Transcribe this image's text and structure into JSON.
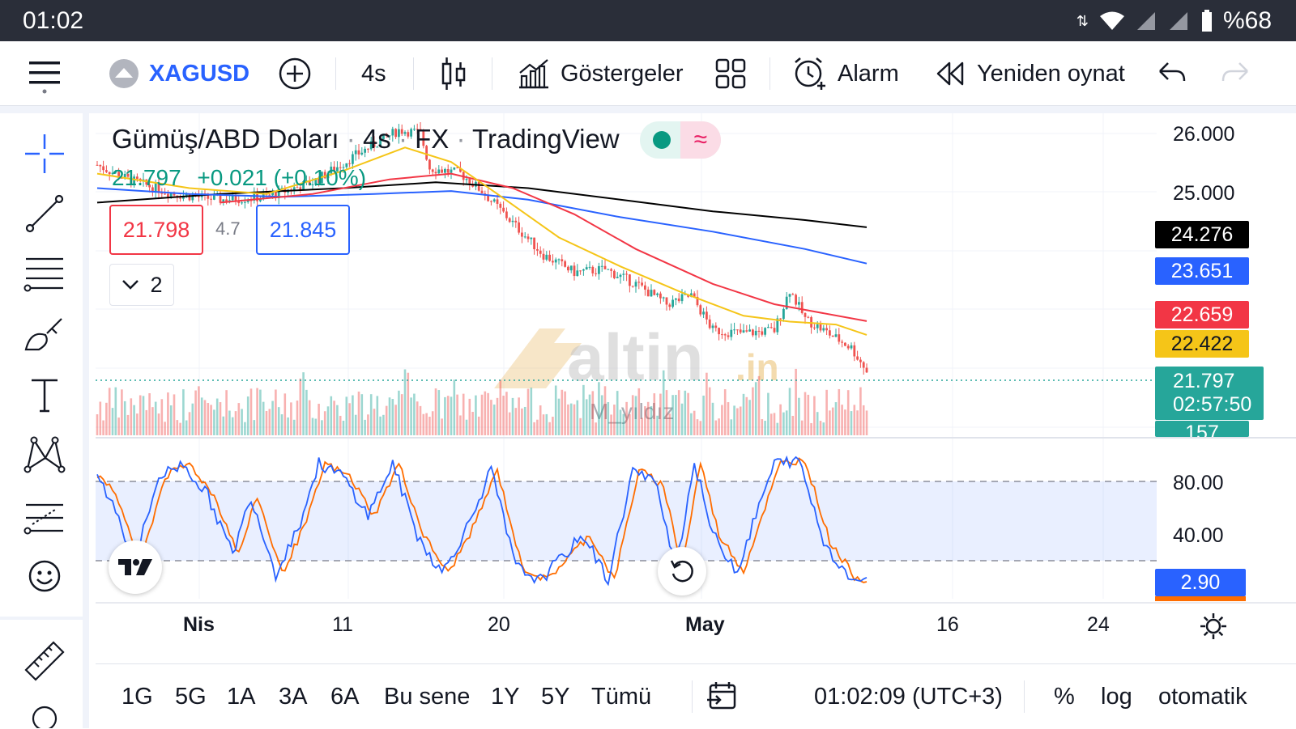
{
  "status_bar": {
    "time": "01:02",
    "battery": "%68"
  },
  "toolbar": {
    "symbol": "XAGUSD",
    "interval": "4s",
    "indicators_label": "Göstergeler",
    "alarm_label": "Alarm",
    "replay_label": "Yeniden oynat"
  },
  "legend": {
    "title_parts": [
      "Gümüş/ABD Doları",
      "4s",
      "FX",
      "TradingView"
    ],
    "last_price": "21.797",
    "change": "+0.021 (+0.10%)",
    "sell_price": "21.798",
    "spread": "4.7",
    "buy_price": "21.845",
    "indicators_count": "2"
  },
  "watermark": {
    "logo_text": "altin",
    "logo_suffix": ".in",
    "author": "M_yıldız"
  },
  "price_axis": {
    "labels": [
      "26.000",
      "25.000"
    ],
    "tags": [
      {
        "value": "24.276",
        "color": "#000000"
      },
      {
        "value": "23.651",
        "color": "#2962ff"
      },
      {
        "value": "22.659",
        "color": "#f23645"
      },
      {
        "value": "22.422",
        "color": "#f5c518"
      },
      {
        "value": "21.797",
        "color": "#26a69a"
      }
    ],
    "countdown": "02:57:50",
    "volume_tag": "157"
  },
  "oscillator_axis": {
    "labels": [
      "80.00",
      "40.00"
    ],
    "current": "2.90"
  },
  "time_axis": {
    "labels": [
      "Nis",
      "11",
      "20",
      "May",
      "16",
      "24"
    ]
  },
  "bottom_bar": {
    "ranges": [
      "1G",
      "5G",
      "1A",
      "3A",
      "6A",
      "Bu sene",
      "1Y",
      "5Y",
      "Tümü"
    ],
    "clock": "01:02:09 (UTC+3)",
    "percent_label": "%",
    "log_label": "log",
    "auto_label": "otomatik"
  },
  "colors": {
    "up": "#26a69a",
    "down": "#ef5350",
    "ma_black": "#000000",
    "ma_blue": "#2962ff",
    "ma_red": "#f23645",
    "ma_yellow": "#f5c518",
    "stoch_k": "#2962ff",
    "stoch_d": "#ff6d00"
  },
  "chart_data": {
    "type": "line",
    "title": "",
    "x_ticks": [
      "Nis",
      "11",
      "20",
      "May",
      "16",
      "24"
    ],
    "y_range": [
      21.5,
      26.1
    ],
    "series": [
      {
        "x": [
          "Nis",
          "11",
          "20",
          "May"
        ],
        "values": [
          25.0,
          25.2,
          25.55,
          22.4
        ]
      },
      {
        "x": [
          "11",
          "20",
          "May"
        ],
        "values": [
          24.8,
          25.2,
          22.66
        ]
      },
      {
        "x": [
          "Nis",
          "11",
          "20",
          "May"
        ],
        "values": [
          24.8,
          24.9,
          24.9,
          23.65
        ]
      },
      {
        "x": [
          "Nis",
          "11",
          "20",
          "May"
        ],
        "values": [
          24.7,
          24.9,
          25.1,
          24.28
        ]
      }
    ],
    "oscillator": {
      "range": [
        0,
        100
      ],
      "bands": [
        20,
        80
      ],
      "last": 2.9
    }
  }
}
